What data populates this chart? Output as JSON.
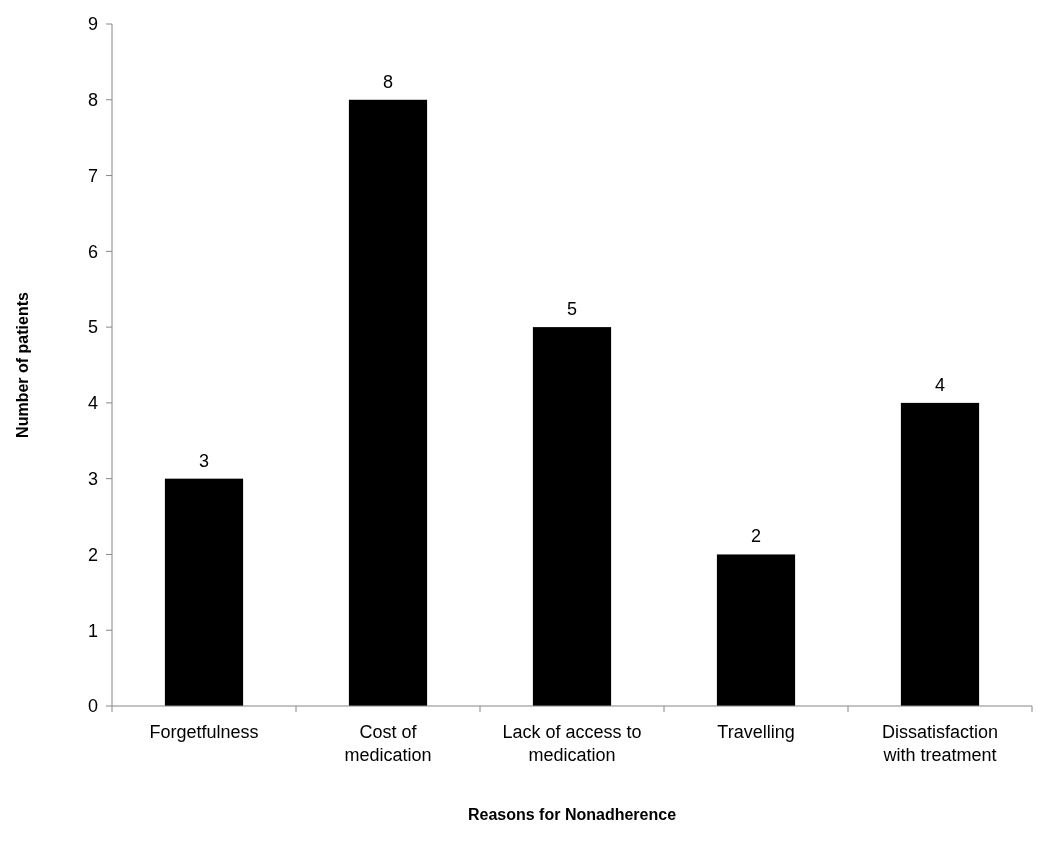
{
  "chart_data": {
    "type": "bar",
    "xlabel": "Reasons for Nonadherence",
    "ylabel": "Number of patients",
    "categories": [
      "Forgetfulness",
      "Cost of medication",
      "Lack of access to medication",
      "Travelling",
      "Dissatisfaction with treatment"
    ],
    "values": [
      3,
      8,
      5,
      2,
      4
    ],
    "color": "#000000",
    "ylim": [
      0,
      9
    ],
    "yticks": [
      0,
      1,
      2,
      3,
      4,
      5,
      6,
      7,
      8,
      9
    ],
    "grid": false,
    "data_labels": true
  }
}
